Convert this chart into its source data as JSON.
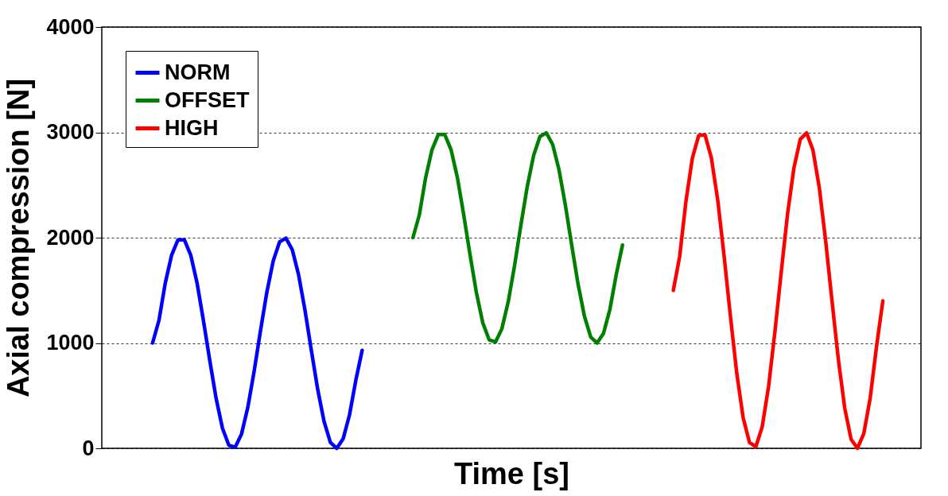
{
  "chart_data": {
    "type": "line",
    "xlabel": "Time [s]",
    "ylabel": "Axial compression [N]",
    "categories": [
      null,
      null,
      null,
      null,
      null,
      null,
      null,
      null,
      null,
      null,
      null,
      null,
      null,
      null,
      null,
      null,
      null,
      null,
      null,
      null,
      null,
      null,
      null,
      null,
      null,
      null,
      null,
      null,
      null,
      null,
      null,
      null,
      null,
      null,
      null,
      null,
      null,
      null,
      null,
      null,
      null,
      null,
      null,
      null,
      null,
      null,
      null,
      null,
      null,
      null,
      null,
      null,
      null,
      null,
      null,
      null,
      null,
      null,
      null,
      null,
      null,
      null,
      null,
      null,
      null,
      null,
      null,
      null,
      null,
      null,
      null,
      null,
      null,
      null,
      null,
      null,
      null,
      null,
      null,
      null,
      null,
      null,
      null,
      null,
      null,
      null,
      null,
      null,
      null,
      null,
      null,
      null,
      null,
      null,
      null,
      null,
      null,
      null,
      null,
      null,
      null,
      null,
      null,
      null,
      null,
      null,
      null,
      null,
      null,
      null,
      null,
      null,
      null,
      null,
      null,
      null,
      null,
      null,
      null,
      null,
      null,
      null,
      null,
      null,
      null,
      null,
      null,
      null,
      null,
      null
    ],
    "series": [
      {
        "name": "NORM",
        "color": "#0000ff",
        "values": [
          null,
          null,
          null,
          null,
          null,
          null,
          null,
          null,
          1000,
          1215,
          1570,
          1835,
          1980,
          1980,
          1835,
          1570,
          1215,
          835,
          475,
          190,
          30,
          10,
          135,
          390,
          735,
          1120,
          1485,
          1780,
          1960,
          1995,
          1885,
          1645,
          1310,
          930,
          560,
          255,
          55,
          0,
          90,
          315,
          645,
          930,
          null,
          null,
          null,
          null,
          null,
          null,
          null,
          null,
          null,
          null,
          null,
          null,
          null,
          null,
          null,
          null,
          null,
          null,
          null,
          null,
          null,
          null,
          null,
          null,
          null,
          null,
          null,
          null,
          null,
          null,
          null,
          null,
          null,
          null,
          null,
          null,
          null,
          null,
          null,
          null,
          null,
          null,
          null,
          null,
          null,
          null,
          null,
          null,
          null,
          null,
          null,
          null,
          null,
          null,
          null,
          null,
          null,
          null,
          null,
          null,
          null,
          null,
          null,
          null,
          null,
          null,
          null,
          null,
          null,
          null,
          null,
          null,
          null,
          null,
          null,
          null,
          null,
          null,
          null,
          null,
          null,
          null,
          null,
          null,
          null,
          null,
          null,
          null
        ]
      },
      {
        "name": "OFFSET",
        "color": "#008000",
        "values": [
          null,
          null,
          null,
          null,
          null,
          null,
          null,
          null,
          null,
          null,
          null,
          null,
          null,
          null,
          null,
          null,
          null,
          null,
          null,
          null,
          null,
          null,
          null,
          null,
          null,
          null,
          null,
          null,
          null,
          null,
          null,
          null,
          null,
          null,
          null,
          null,
          null,
          null,
          null,
          null,
          null,
          null,
          null,
          null,
          null,
          null,
          null,
          null,
          null,
          2000,
          2215,
          2570,
          2835,
          2980,
          2980,
          2835,
          2570,
          2215,
          1835,
          1475,
          1190,
          1030,
          1010,
          1135,
          1390,
          1735,
          2120,
          2485,
          2780,
          2960,
          2995,
          2885,
          2645,
          2310,
          1930,
          1560,
          1255,
          1055,
          1000,
          1090,
          1315,
          1645,
          1930,
          null,
          null,
          null,
          null,
          null,
          null,
          null,
          null,
          null,
          null,
          null,
          null,
          null,
          null,
          null,
          null,
          null,
          null,
          null,
          null,
          null,
          null,
          null,
          null,
          null,
          null,
          null,
          null,
          null,
          null,
          null,
          null,
          null,
          null,
          null,
          null,
          null,
          null,
          null,
          null,
          null,
          null,
          null,
          null,
          null,
          null,
          null
        ]
      },
      {
        "name": "HIGH",
        "color": "#ff0000",
        "values": [
          null,
          null,
          null,
          null,
          null,
          null,
          null,
          null,
          null,
          null,
          null,
          null,
          null,
          null,
          null,
          null,
          null,
          null,
          null,
          null,
          null,
          null,
          null,
          null,
          null,
          null,
          null,
          null,
          null,
          null,
          null,
          null,
          null,
          null,
          null,
          null,
          null,
          null,
          null,
          null,
          null,
          null,
          null,
          null,
          null,
          null,
          null,
          null,
          null,
          null,
          null,
          null,
          null,
          null,
          null,
          null,
          null,
          null,
          null,
          null,
          null,
          null,
          null,
          null,
          null,
          null,
          null,
          null,
          null,
          null,
          null,
          null,
          null,
          null,
          null,
          null,
          null,
          null,
          null,
          null,
          null,
          null,
          null,
          null,
          null,
          null,
          null,
          null,
          null,
          null,
          1500,
          1820,
          2350,
          2755,
          2970,
          2975,
          2755,
          2355,
          1825,
          1250,
          710,
          290,
          55,
          15,
          205,
          585,
          1105,
          1675,
          2230,
          2665,
          2935,
          2995,
          2830,
          2470,
          1965,
          1395,
          840,
          380,
          85,
          0,
          140,
          475,
          965,
          1400,
          null,
          null,
          null,
          null,
          null,
          null
        ]
      }
    ],
    "ylim": [
      0,
      4000
    ],
    "yticks": [
      0,
      1000,
      2000,
      3000,
      4000
    ],
    "grid": "y",
    "legend": "top left",
    "tick_labels": "y"
  }
}
